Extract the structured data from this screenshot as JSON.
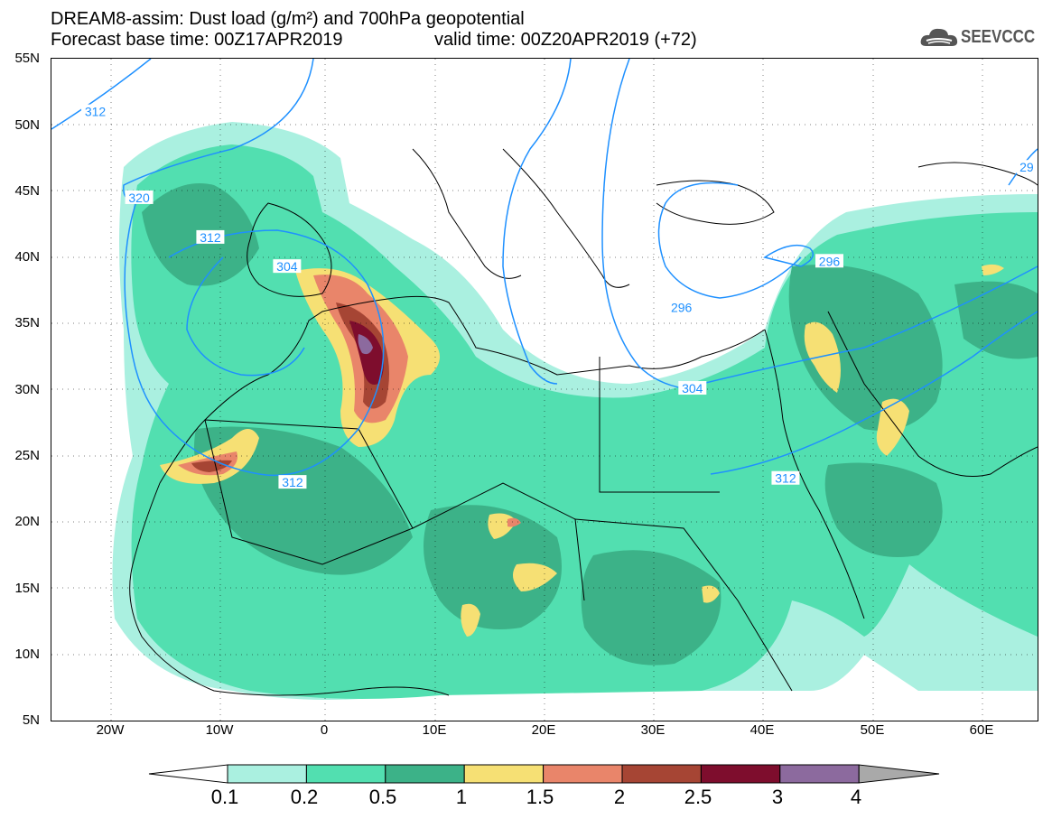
{
  "header": {
    "title_line1": "DREAM8-assim: Dust load (g/m²) and 700hPa geopotential",
    "base_time_text": "Forecast base time: 00Z17APR2019",
    "valid_time_text": "valid time: 00Z20APR2019 (+72)",
    "logo_text": "SEEVCCC"
  },
  "axes": {
    "lat_labels": [
      "55N",
      "50N",
      "45N",
      "40N",
      "35N",
      "30N",
      "25N",
      "20N",
      "15N",
      "10N",
      "5N"
    ],
    "lon_labels": [
      "20W",
      "10W",
      "0",
      "10E",
      "20E",
      "30E",
      "40E",
      "50E",
      "60E"
    ]
  },
  "contours": {
    "line_color": "#1e90ff",
    "labels": [
      {
        "text": "312",
        "lon": -21,
        "lat": 51
      },
      {
        "text": "320",
        "lon": -17,
        "lat": 44.5
      },
      {
        "text": "312",
        "lon": -10.5,
        "lat": 41.5
      },
      {
        "text": "304",
        "lon": -3.5,
        "lat": 39.3
      },
      {
        "text": "312",
        "lon": -3,
        "lat": 23
      },
      {
        "text": "296",
        "lon": 32.5,
        "lat": 36.2
      },
      {
        "text": "304",
        "lon": 33.5,
        "lat": 30.1
      },
      {
        "text": "312",
        "lon": 42,
        "lat": 23.3
      },
      {
        "text": "296",
        "lon": 46,
        "lat": 39.7
      },
      {
        "text": "29",
        "lon": 64,
        "lat": 46.8
      }
    ]
  },
  "colorbar": {
    "boundaries": [
      "0.1",
      "0.2",
      "0.5",
      "1",
      "1.5",
      "2",
      "2.5",
      "3",
      "4"
    ],
    "colors": [
      "#aaf0e0",
      "#52dfb0",
      "#3cb288",
      "#f6e074",
      "#e9856a",
      "#a64534",
      "#7e0d2d",
      "#8c6a9e"
    ],
    "under_color": "#ffffff",
    "over_color": "#a9a9a9"
  }
}
